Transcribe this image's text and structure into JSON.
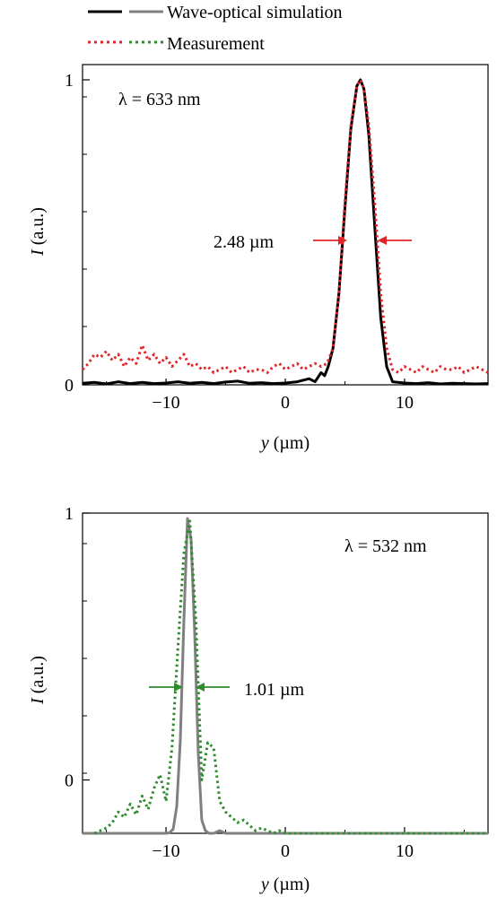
{
  "legend": {
    "items": [
      {
        "label": "Wave-optical simulation",
        "style": "solid",
        "colors": [
          "#000000",
          "#808080"
        ]
      },
      {
        "label": "Measurement",
        "style": "dotted",
        "colors": [
          "#e0262a",
          "#2e8b2e"
        ]
      }
    ]
  },
  "chart_data": [
    {
      "type": "line",
      "annotation": "λ = 633 nm",
      "fwhm_label": "2.48 µm",
      "fwhm_color": "#e0262a",
      "xlabel_var": "y",
      "xlabel_unit": "(µm)",
      "ylabel_var": "I",
      "ylabel_unit": "(a.u.)",
      "xlim": [
        -17,
        17
      ],
      "ylim": [
        0,
        1.05
      ],
      "xticks": [
        -10,
        0,
        10
      ],
      "xtick_labels": [
        "−10",
        "0",
        "10"
      ],
      "yticks": [
        0,
        1
      ],
      "ytick_labels": [
        "0",
        "1"
      ],
      "series": [
        {
          "name": "Wave-optical simulation",
          "color": "#000000",
          "style": "solid",
          "x": [
            -17,
            -16,
            -15,
            -14,
            -13,
            -12,
            -11,
            -10,
            -9,
            -8,
            -7,
            -6,
            -5,
            -4,
            -3,
            -2,
            -1,
            0,
            1,
            2,
            2.5,
            3,
            3.3,
            3.6,
            4,
            4.5,
            5,
            5.5,
            6,
            6.3,
            6.6,
            7,
            7.5,
            8,
            8.5,
            9,
            10,
            11,
            12,
            13,
            14,
            15,
            16,
            17
          ],
          "y": [
            0.005,
            0.008,
            0.003,
            0.01,
            0.004,
            0.008,
            0.004,
            0.006,
            0.01,
            0.005,
            0.008,
            0.004,
            0.009,
            0.012,
            0.005,
            0.007,
            0.004,
            0.006,
            0.01,
            0.02,
            0.01,
            0.04,
            0.03,
            0.06,
            0.12,
            0.3,
            0.58,
            0.84,
            0.98,
            1.0,
            0.97,
            0.82,
            0.52,
            0.22,
            0.06,
            0.01,
            0.006,
            0.004,
            0.007,
            0.003,
            0.005,
            0.004,
            0.003,
            0.004
          ]
        },
        {
          "name": "Measurement",
          "color": "#e0262a",
          "style": "dotted",
          "x": [
            -17,
            -16.5,
            -16,
            -15.5,
            -15,
            -14.5,
            -14,
            -13.5,
            -13,
            -12.5,
            -12,
            -11.5,
            -11,
            -10.5,
            -10,
            -9.5,
            -9,
            -8.5,
            -8,
            -7.5,
            -7,
            -6.5,
            -6,
            -5.5,
            -5,
            -4.5,
            -4,
            -3.5,
            -3,
            -2.5,
            -2,
            -1.5,
            -1,
            -0.5,
            0,
            0.5,
            1,
            1.5,
            2,
            2.5,
            3,
            3.5,
            4,
            4.5,
            5,
            5.5,
            6,
            6.3,
            6.6,
            7,
            7.5,
            8,
            8.5,
            9,
            9.5,
            10,
            10.5,
            11,
            11.5,
            12,
            12.5,
            13,
            13.5,
            14,
            14.5,
            15,
            15.5,
            16,
            16.5,
            17
          ],
          "y": [
            0.05,
            0.07,
            0.1,
            0.09,
            0.11,
            0.08,
            0.1,
            0.06,
            0.09,
            0.07,
            0.13,
            0.08,
            0.1,
            0.07,
            0.09,
            0.06,
            0.08,
            0.1,
            0.06,
            0.07,
            0.05,
            0.06,
            0.04,
            0.05,
            0.06,
            0.04,
            0.05,
            0.06,
            0.04,
            0.05,
            0.05,
            0.04,
            0.06,
            0.07,
            0.05,
            0.06,
            0.07,
            0.05,
            0.06,
            0.07,
            0.06,
            0.07,
            0.12,
            0.3,
            0.6,
            0.85,
            0.98,
            1.0,
            0.97,
            0.85,
            0.6,
            0.3,
            0.12,
            0.05,
            0.04,
            0.06,
            0.05,
            0.04,
            0.06,
            0.05,
            0.04,
            0.06,
            0.05,
            0.05,
            0.06,
            0.04,
            0.05,
            0.06,
            0.05,
            0.04
          ]
        }
      ]
    },
    {
      "type": "line",
      "annotation": "λ = 532 nm",
      "fwhm_label": "1.01 µm",
      "fwhm_color": "#2e8b2e",
      "xlabel_var": "y",
      "xlabel_unit": "(µm)",
      "ylabel_var": "I",
      "ylabel_unit": "(a.u.)",
      "xlim": [
        -17,
        17
      ],
      "ylim": [
        -0.2,
        1.0
      ],
      "xticks": [
        -10,
        0,
        10
      ],
      "xtick_labels": [
        "−10",
        "0",
        "10"
      ],
      "yticks": [
        0,
        1
      ],
      "ytick_labels": [
        "0",
        "1"
      ],
      "series": [
        {
          "name": "Wave-optical simulation",
          "color": "#808080",
          "style": "solid",
          "x": [
            -17,
            -14,
            -12,
            -11,
            -10,
            -9.7,
            -9.4,
            -9.1,
            -8.8,
            -8.5,
            -8.2,
            -7.9,
            -7.6,
            -7.3,
            -7.0,
            -6.7,
            -6.4,
            -6.0,
            -5.5,
            -5,
            -4,
            -2,
            0,
            4,
            8,
            12,
            17
          ],
          "y": [
            -0.2,
            -0.2,
            -0.2,
            -0.2,
            -0.2,
            -0.198,
            -0.185,
            -0.1,
            0.15,
            0.6,
            0.98,
            0.9,
            0.55,
            0.1,
            -0.15,
            -0.19,
            -0.2,
            -0.2,
            -0.19,
            -0.2,
            -0.2,
            -0.2,
            -0.2,
            -0.2,
            -0.2,
            -0.2,
            -0.2
          ]
        },
        {
          "name": "Measurement",
          "color": "#2e8b2e",
          "style": "dotted",
          "x": [
            -16,
            -15.5,
            -15,
            -14.5,
            -14,
            -13.5,
            -13,
            -12.5,
            -12,
            -11.5,
            -11,
            -10.5,
            -10,
            -9.5,
            -9,
            -8.5,
            -8,
            -7.5,
            -7,
            -6.5,
            -6,
            -5.5,
            -5,
            -4.5,
            -4,
            -3.5,
            -3,
            -2.5,
            -2,
            -1.5,
            -1,
            -0.5,
            0,
            1,
            2,
            4,
            6,
            8,
            10,
            12,
            14,
            16,
            17
          ],
          "y": [
            -0.2,
            -0.19,
            -0.18,
            -0.16,
            -0.12,
            -0.14,
            -0.09,
            -0.13,
            -0.06,
            -0.11,
            -0.03,
            0.02,
            -0.08,
            0.12,
            0.5,
            0.85,
            0.97,
            0.6,
            0.0,
            0.14,
            0.12,
            -0.08,
            -0.12,
            -0.14,
            -0.16,
            -0.15,
            -0.17,
            -0.19,
            -0.18,
            -0.19,
            -0.2,
            -0.19,
            -0.2,
            -0.2,
            -0.2,
            -0.2,
            -0.2,
            -0.2,
            -0.2,
            -0.2,
            -0.2,
            -0.2,
            -0.2
          ]
        }
      ]
    }
  ]
}
